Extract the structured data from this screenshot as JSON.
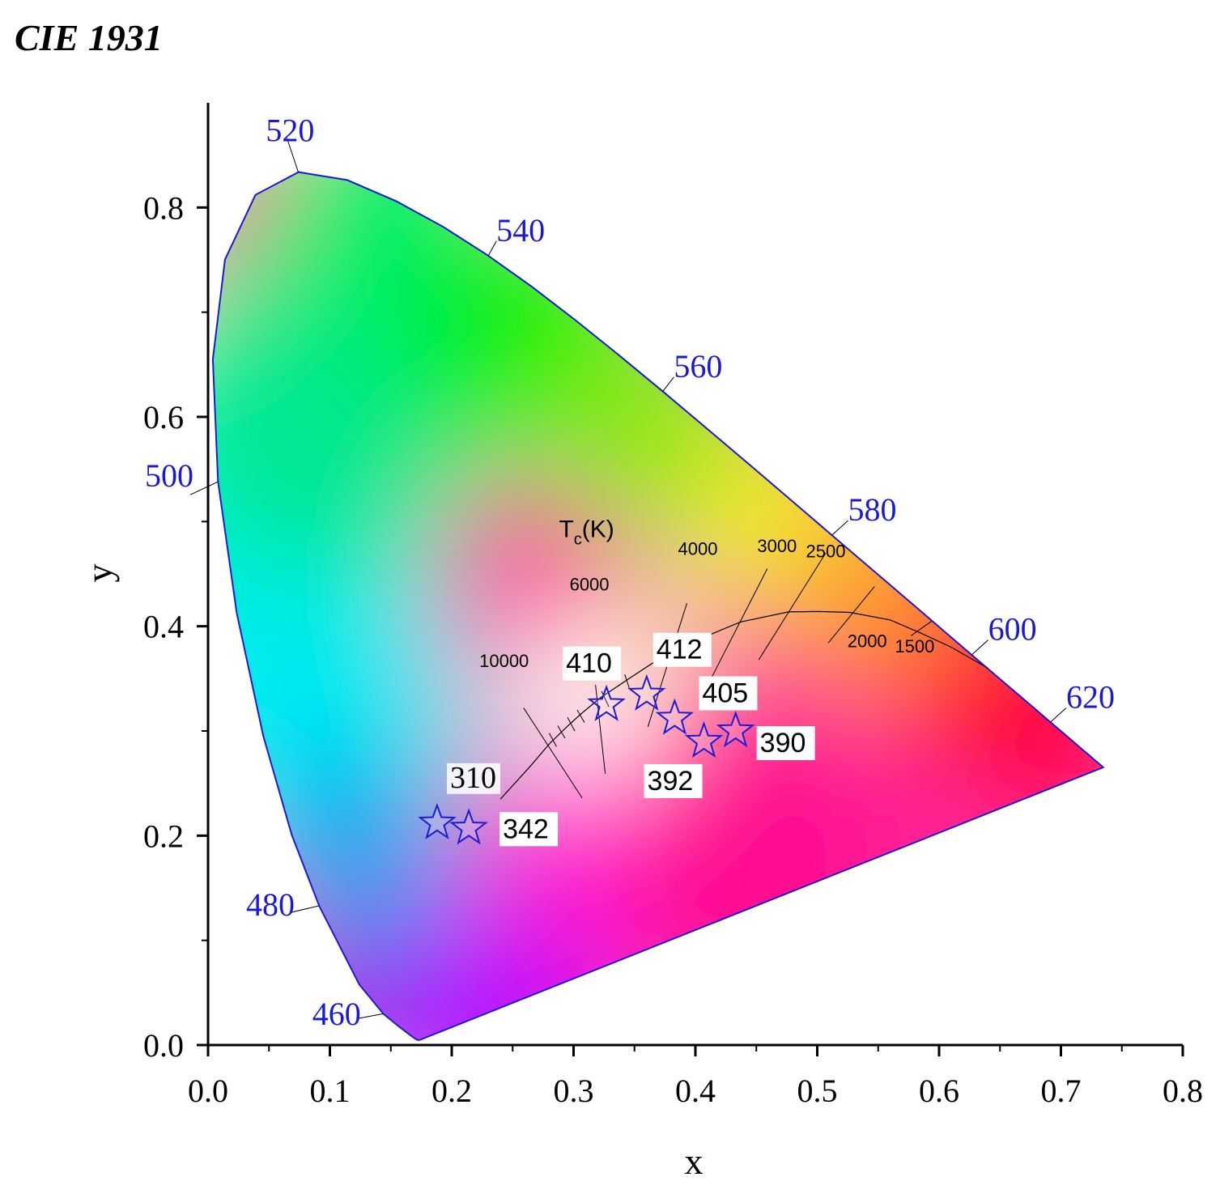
{
  "chart_data": {
    "type": "scatter",
    "title": "CIE 1931",
    "xlabel": "x",
    "ylabel": "y",
    "xlim": [
      0.0,
      0.8
    ],
    "ylim": [
      0.0,
      0.9
    ],
    "x_ticks": [
      "0.0",
      "0.1",
      "0.2",
      "0.3",
      "0.4",
      "0.5",
      "0.6",
      "0.7",
      "0.8"
    ],
    "y_ticks": [
      "0.0",
      "0.2",
      "0.4",
      "0.6",
      "0.8"
    ],
    "spectral_locus_labels": [
      {
        "label": "460",
        "x": 0.144,
        "y": 0.03
      },
      {
        "label": "480",
        "x": 0.091,
        "y": 0.133
      },
      {
        "label": "500",
        "x": 0.008,
        "y": 0.538
      },
      {
        "label": "520",
        "x": 0.074,
        "y": 0.834
      },
      {
        "label": "540",
        "x": 0.23,
        "y": 0.754
      },
      {
        "label": "560",
        "x": 0.373,
        "y": 0.624
      },
      {
        "label": "580",
        "x": 0.512,
        "y": 0.487
      },
      {
        "label": "600",
        "x": 0.627,
        "y": 0.373
      },
      {
        "label": "620",
        "x": 0.691,
        "y": 0.308
      }
    ],
    "planckian_locus_label": "Tc(K)",
    "cct_labels": [
      "10000",
      "6000",
      "4000",
      "3000",
      "2500",
      "2000",
      "1500"
    ],
    "series": [
      {
        "marker": "star",
        "points": [
          {
            "label": "310",
            "x": 0.188,
            "y": 0.212
          },
          {
            "label": "342",
            "x": 0.214,
            "y": 0.207
          },
          {
            "label": "410",
            "x": 0.327,
            "y": 0.325
          },
          {
            "label": "412",
            "x": 0.36,
            "y": 0.335
          },
          {
            "label": "405",
            "x": 0.383,
            "y": 0.312
          },
          {
            "label": "392",
            "x": 0.407,
            "y": 0.29
          },
          {
            "label": "390",
            "x": 0.433,
            "y": 0.3
          }
        ]
      }
    ]
  },
  "colors": {
    "wavelength_label": "#1a1ad6",
    "marker_stroke": "#1a1ad6",
    "locus_outline": "#1a1ad6"
  }
}
